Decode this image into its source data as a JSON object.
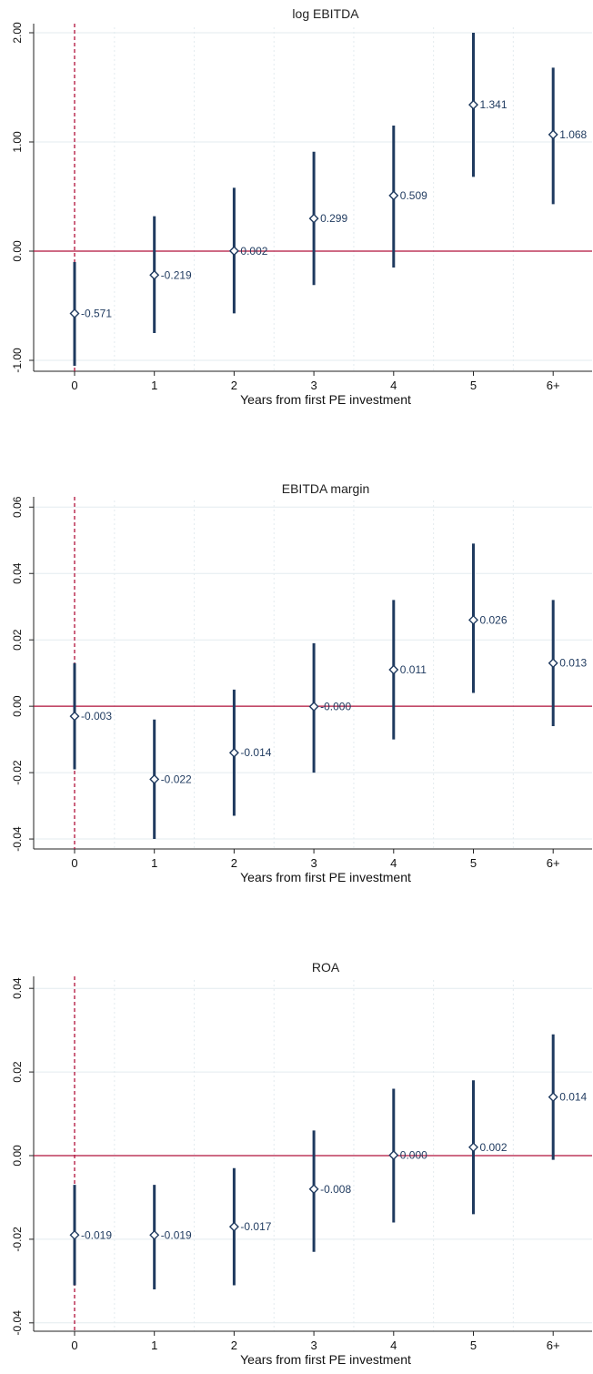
{
  "chart_data": [
    {
      "type": "scatter",
      "title": "log EBITDA",
      "xlabel": "Years from first PE investment",
      "ylabel": "",
      "categories": [
        "0",
        "1",
        "2",
        "3",
        "4",
        "5",
        "6+"
      ],
      "yticks": [
        "-1.00",
        "0.00",
        "1.00",
        "2.00"
      ],
      "ylim": [
        -1.1,
        2.05
      ],
      "values": [
        -0.571,
        -0.219,
        0.002,
        0.299,
        0.509,
        1.341,
        1.068
      ],
      "ci_low": [
        -1.05,
        -0.75,
        -0.57,
        -0.31,
        -0.15,
        0.68,
        0.43
      ],
      "ci_high": [
        -0.1,
        0.32,
        0.58,
        0.91,
        1.15,
        2.0,
        1.68
      ],
      "point_labels": [
        "-0.571",
        "-0.219",
        "0.002",
        "0.299",
        "0.509",
        "1.341",
        "1.068"
      ],
      "reference_lines": {
        "horizontal_y": 0,
        "vertical_x_category": "0"
      },
      "grid": true
    },
    {
      "type": "scatter",
      "title": "EBITDA margin",
      "xlabel": "Years from first PE investment",
      "ylabel": "",
      "categories": [
        "0",
        "1",
        "2",
        "3",
        "4",
        "5",
        "6+"
      ],
      "yticks": [
        "-0.04",
        "-0.02",
        "0.00",
        "0.02",
        "0.04",
        "0.06"
      ],
      "ylim": [
        -0.043,
        0.062
      ],
      "values": [
        -0.003,
        -0.022,
        -0.014,
        -0.0001,
        0.011,
        0.026,
        0.013
      ],
      "ci_low": [
        -0.019,
        -0.04,
        -0.033,
        -0.02,
        -0.01,
        0.004,
        -0.006
      ],
      "ci_high": [
        0.013,
        -0.004,
        0.005,
        0.019,
        0.032,
        0.049,
        0.032
      ],
      "point_labels": [
        "-0.003",
        "-0.022",
        "-0.014",
        "-0.000",
        "0.011",
        "0.026",
        "0.013"
      ],
      "reference_lines": {
        "horizontal_y": 0,
        "vertical_x_category": "0"
      },
      "grid": true
    },
    {
      "type": "scatter",
      "title": "ROA",
      "xlabel": "Years from first PE investment",
      "ylabel": "",
      "categories": [
        "0",
        "1",
        "2",
        "3",
        "4",
        "5",
        "6+"
      ],
      "yticks": [
        "-0.04",
        "-0.02",
        "0.00",
        "0.02",
        "0.04"
      ],
      "ylim": [
        -0.042,
        0.042
      ],
      "values": [
        -0.019,
        -0.019,
        -0.017,
        -0.008,
        0.0001,
        0.002,
        0.014
      ],
      "ci_low": [
        -0.031,
        -0.032,
        -0.031,
        -0.023,
        -0.016,
        -0.014,
        -0.001
      ],
      "ci_high": [
        -0.007,
        -0.007,
        -0.003,
        0.006,
        0.016,
        0.018,
        0.029
      ],
      "point_labels": [
        "-0.019",
        "-0.019",
        "-0.017",
        "-0.008",
        "0.000",
        "0.002",
        "0.014"
      ],
      "reference_lines": {
        "horizontal_y": 0,
        "vertical_x_category": "0"
      },
      "grid": true
    }
  ],
  "colors": {
    "ci_line": "#1f3a5f",
    "marker_edge": "#1f3a5f",
    "marker_fill": "#ffffff",
    "zero_line": "#b0103a",
    "event_line": "#b0103a",
    "grid": "#e3ebef",
    "axis": "#222222"
  }
}
